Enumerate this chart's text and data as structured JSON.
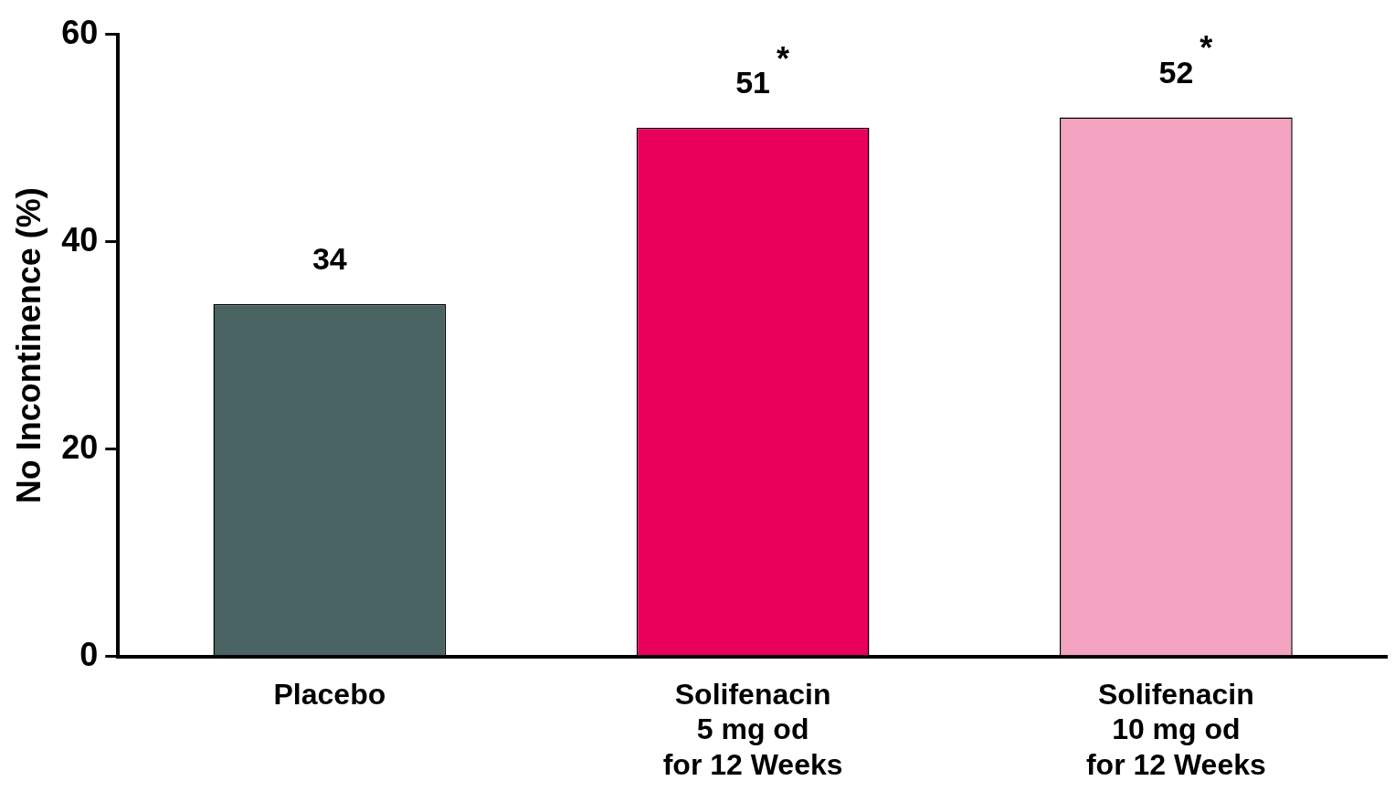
{
  "chart_data": {
    "type": "bar",
    "ylabel": "No Incontinence (%)",
    "categories": [
      "Placebo",
      "Solifenacin\n5 mg od\nfor 12 Weeks",
      "Solifenacin\n10 mg od\nfor 12 Weeks"
    ],
    "values": [
      34,
      51,
      52
    ],
    "colors": [
      "#4a6363",
      "#e8005a",
      "#f4a3c1"
    ],
    "ylim": [
      0,
      60
    ],
    "yticks": [
      0,
      20,
      40,
      60
    ],
    "grid": false,
    "legend": false,
    "data_labels": true,
    "annotations": [
      {
        "text": "*",
        "x": "Solifenacin\n5 mg od\nfor 12 Weeks",
        "y": 51
      },
      {
        "text": "*",
        "x": "Solifenacin\n10 mg od\nfor 12 Weeks",
        "y": 52
      }
    ]
  }
}
